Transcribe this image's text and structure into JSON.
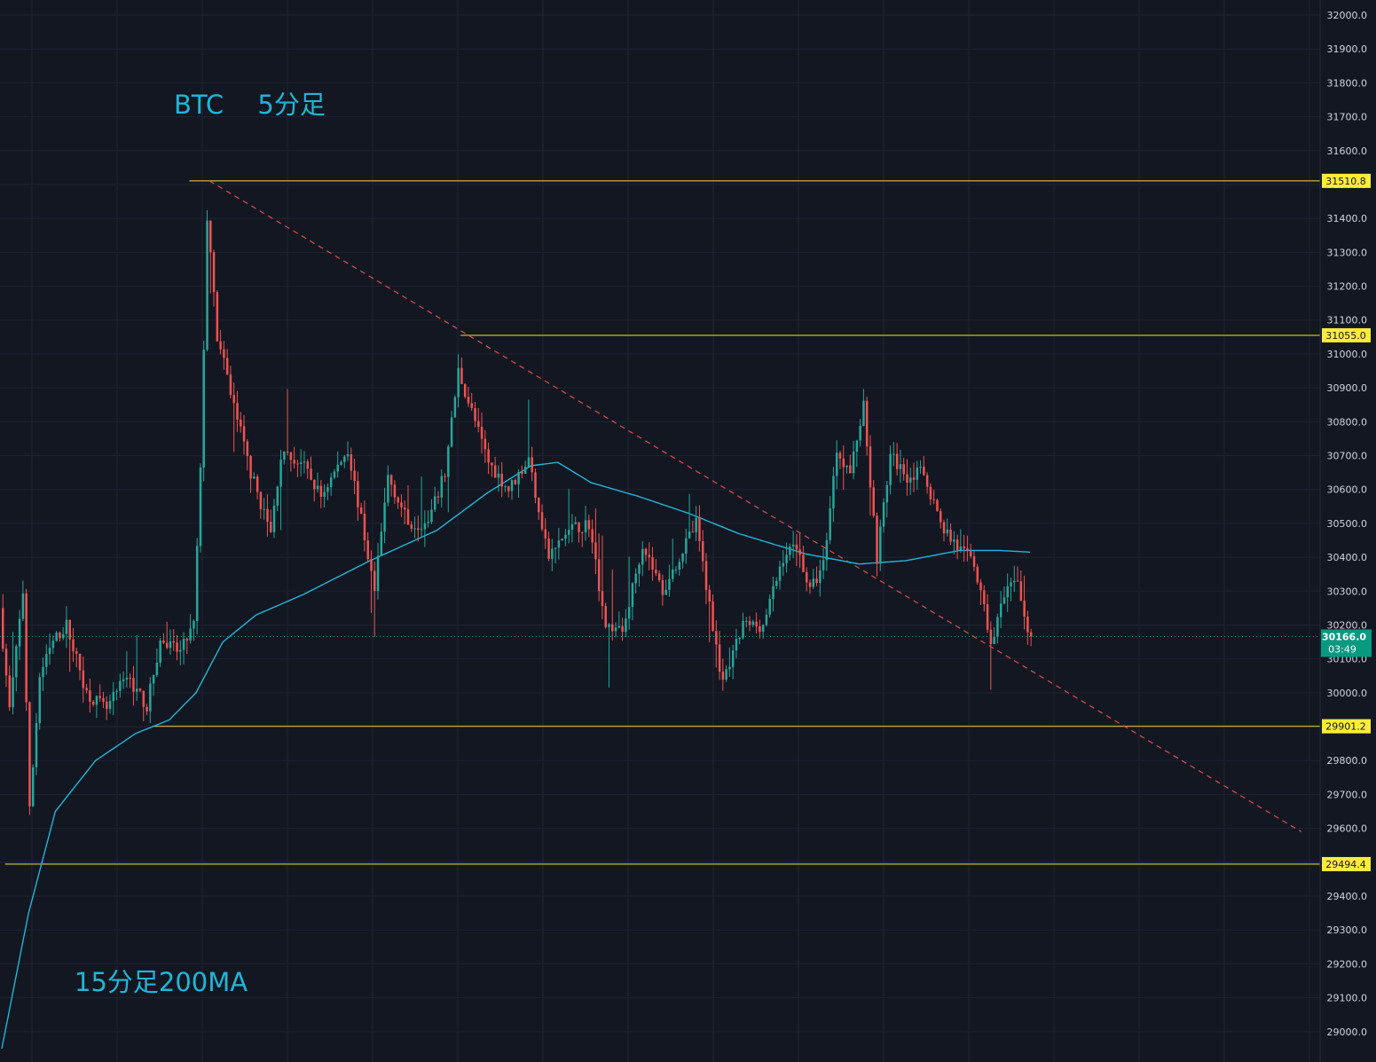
{
  "chart_data": {
    "type": "candlestick",
    "timeframe": "5分足",
    "symbol": "BTC",
    "title": "BTC　 5分足",
    "ma_label": "15分足200MA",
    "y_axis": {
      "ticks": [
        29000.0,
        29100.0,
        29200.0,
        29300.0,
        29400.0,
        29500.0,
        29600.0,
        29700.0,
        29800.0,
        29900.0,
        30000.0,
        30100.0,
        30200.0,
        30300.0,
        30400.0,
        30500.0,
        30600.0,
        30700.0,
        30800.0,
        30900.0,
        31000.0,
        31100.0,
        31200.0,
        31300.0,
        31400.0,
        31500.0,
        31600.0,
        31700.0,
        31800.0,
        31900.0,
        32000.0
      ],
      "ylim": [
        28900,
        32050
      ],
      "tick_decimals": 1
    },
    "horizontal_levels": [
      {
        "label": "31510.8",
        "value": 31510.8
      },
      {
        "label": "31055.0",
        "value": 31055.0
      },
      {
        "label": "29901.2",
        "value": 29901.2
      },
      {
        "label": "29494.4",
        "value": 29494.4
      }
    ],
    "current_price": {
      "label": "30166.0",
      "value": 30166.0,
      "countdown": "03:49"
    },
    "trendline": {
      "style": "dashed",
      "start": {
        "bar_index": 62,
        "price": 31510.8
      },
      "end": {
        "bar_index": 388,
        "price": 29590.0
      }
    },
    "price_path_keypoints": [
      {
        "i": 0,
        "p": 30250
      },
      {
        "i": 3,
        "p": 29950
      },
      {
        "i": 7,
        "p": 30300
      },
      {
        "i": 9,
        "p": 29650
      },
      {
        "i": 12,
        "p": 30050
      },
      {
        "i": 16,
        "p": 30150
      },
      {
        "i": 20,
        "p": 30200
      },
      {
        "i": 26,
        "p": 30000
      },
      {
        "i": 32,
        "p": 29950
      },
      {
        "i": 38,
        "p": 30050
      },
      {
        "i": 44,
        "p": 29960
      },
      {
        "i": 48,
        "p": 30150
      },
      {
        "i": 54,
        "p": 30120
      },
      {
        "i": 58,
        "p": 30200
      },
      {
        "i": 60,
        "p": 30650
      },
      {
        "i": 62,
        "p": 31400
      },
      {
        "i": 65,
        "p": 31050
      },
      {
        "i": 70,
        "p": 30850
      },
      {
        "i": 75,
        "p": 30650
      },
      {
        "i": 81,
        "p": 30470
      },
      {
        "i": 84,
        "p": 30700
      },
      {
        "i": 90,
        "p": 30680
      },
      {
        "i": 96,
        "p": 30580
      },
      {
        "i": 104,
        "p": 30720
      },
      {
        "i": 112,
        "p": 30300
      },
      {
        "i": 116,
        "p": 30640
      },
      {
        "i": 122,
        "p": 30500
      },
      {
        "i": 128,
        "p": 30500
      },
      {
        "i": 133,
        "p": 30650
      },
      {
        "i": 137,
        "p": 30950
      },
      {
        "i": 142,
        "p": 30800
      },
      {
        "i": 146,
        "p": 30680
      },
      {
        "i": 152,
        "p": 30600
      },
      {
        "i": 158,
        "p": 30690
      },
      {
        "i": 164,
        "p": 30400
      },
      {
        "i": 170,
        "p": 30480
      },
      {
        "i": 176,
        "p": 30500
      },
      {
        "i": 181,
        "p": 30200
      },
      {
        "i": 186,
        "p": 30180
      },
      {
        "i": 192,
        "p": 30440
      },
      {
        "i": 198,
        "p": 30300
      },
      {
        "i": 204,
        "p": 30420
      },
      {
        "i": 208,
        "p": 30500
      },
      {
        "i": 213,
        "p": 30200
      },
      {
        "i": 216,
        "p": 30020
      },
      {
        "i": 222,
        "p": 30200
      },
      {
        "i": 228,
        "p": 30200
      },
      {
        "i": 234,
        "p": 30400
      },
      {
        "i": 238,
        "p": 30440
      },
      {
        "i": 242,
        "p": 30300
      },
      {
        "i": 246,
        "p": 30380
      },
      {
        "i": 250,
        "p": 30720
      },
      {
        "i": 254,
        "p": 30650
      },
      {
        "i": 258,
        "p": 30850
      },
      {
        "i": 262,
        "p": 30400
      },
      {
        "i": 266,
        "p": 30700
      },
      {
        "i": 271,
        "p": 30640
      },
      {
        "i": 276,
        "p": 30650
      },
      {
        "i": 281,
        "p": 30500
      },
      {
        "i": 286,
        "p": 30430
      },
      {
        "i": 291,
        "p": 30380
      },
      {
        "i": 296,
        "p": 30150
      },
      {
        "i": 300,
        "p": 30280
      },
      {
        "i": 304,
        "p": 30340
      },
      {
        "i": 307,
        "p": 30166
      }
    ],
    "ma_200_path": [
      {
        "i": 0,
        "p": 28950
      },
      {
        "i": 8,
        "p": 29350
      },
      {
        "i": 16,
        "p": 29650
      },
      {
        "i": 28,
        "p": 29800
      },
      {
        "i": 40,
        "p": 29880
      },
      {
        "i": 50,
        "p": 29920
      },
      {
        "i": 58,
        "p": 30000
      },
      {
        "i": 66,
        "p": 30150
      },
      {
        "i": 76,
        "p": 30230
      },
      {
        "i": 90,
        "p": 30290
      },
      {
        "i": 110,
        "p": 30390
      },
      {
        "i": 130,
        "p": 30480
      },
      {
        "i": 145,
        "p": 30590
      },
      {
        "i": 158,
        "p": 30670
      },
      {
        "i": 166,
        "p": 30680
      },
      {
        "i": 176,
        "p": 30620
      },
      {
        "i": 190,
        "p": 30580
      },
      {
        "i": 205,
        "p": 30530
      },
      {
        "i": 220,
        "p": 30470
      },
      {
        "i": 240,
        "p": 30410
      },
      {
        "i": 256,
        "p": 30380
      },
      {
        "i": 270,
        "p": 30390
      },
      {
        "i": 286,
        "p": 30420
      },
      {
        "i": 298,
        "p": 30420
      },
      {
        "i": 307,
        "p": 30415
      }
    ],
    "bar_count": 308,
    "grid": true,
    "colors": {
      "background": "#131722",
      "up": "#26a69a",
      "down": "#ef5350",
      "level_line": "#b5a642",
      "level_label_bg": "#ffeb3b",
      "ma_line": "#1fb6d8",
      "trendline": "#e04c4c",
      "current_price_bg": "#089981",
      "annotation_text": "#1fb6d8",
      "axis_text": "#d1d4dc",
      "grid": "#1f2433"
    }
  }
}
